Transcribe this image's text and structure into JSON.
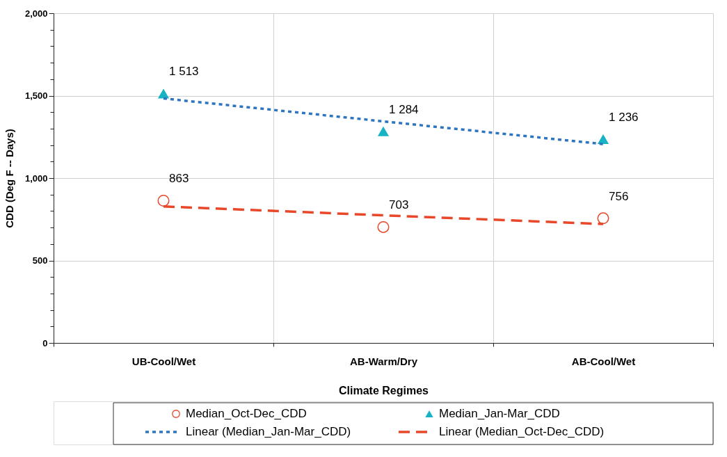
{
  "chart_data": {
    "type": "scatter",
    "xlabel": "Climate Regimes",
    "ylabel": "CDD (Deg F -- Days)",
    "categories": [
      "UB-Cool/Wet",
      "AB-Warm/Dry",
      "AB-Cool/Wet"
    ],
    "ylim": [
      0,
      2000
    ],
    "yticks": [
      {
        "value": 0,
        "label": "0"
      },
      {
        "value": 100,
        "label": null
      },
      {
        "value": 200,
        "label": null
      },
      {
        "value": 300,
        "label": null
      },
      {
        "value": 400,
        "label": null
      },
      {
        "value": 500,
        "label": "500"
      },
      {
        "value": 600,
        "label": null
      },
      {
        "value": 700,
        "label": null
      },
      {
        "value": 800,
        "label": null
      },
      {
        "value": 900,
        "label": null
      },
      {
        "value": 1000,
        "label": "1,000"
      },
      {
        "value": 1100,
        "label": null
      },
      {
        "value": 1200,
        "label": null
      },
      {
        "value": 1300,
        "label": null
      },
      {
        "value": 1400,
        "label": null
      },
      {
        "value": 1500,
        "label": "1,500"
      },
      {
        "value": 1600,
        "label": null
      },
      {
        "value": 1700,
        "label": null
      },
      {
        "value": 1800,
        "label": null
      },
      {
        "value": 1900,
        "label": null
      },
      {
        "value": 2000,
        "label": "2,000"
      }
    ],
    "grid": true,
    "legend": "bottom",
    "series": [
      {
        "name": "Median_Oct-Dec_CDD",
        "type": "scatter",
        "marker": "circle",
        "color": "#e8472a",
        "values": [
          863,
          703,
          756
        ],
        "value_labels": [
          "863",
          "703",
          "756"
        ]
      },
      {
        "name": "Median_Jan-Mar_CDD",
        "type": "scatter",
        "marker": "triangle",
        "color": "#17b3c4",
        "values": [
          1513,
          1284,
          1236
        ],
        "value_labels": [
          "1 513",
          "1 284",
          "1 236"
        ]
      },
      {
        "name": "Linear (Median_Jan-Mar_CDD)",
        "type": "line",
        "line_style": "dotted",
        "color": "#2e75c0",
        "values": [
          1483,
          1344,
          1206
        ]
      },
      {
        "name": "Linear (Median_Oct-Dec_CDD)",
        "type": "line",
        "line_style": "dashed",
        "color": "#e8472a",
        "values": [
          828,
          774,
          721
        ]
      }
    ]
  }
}
